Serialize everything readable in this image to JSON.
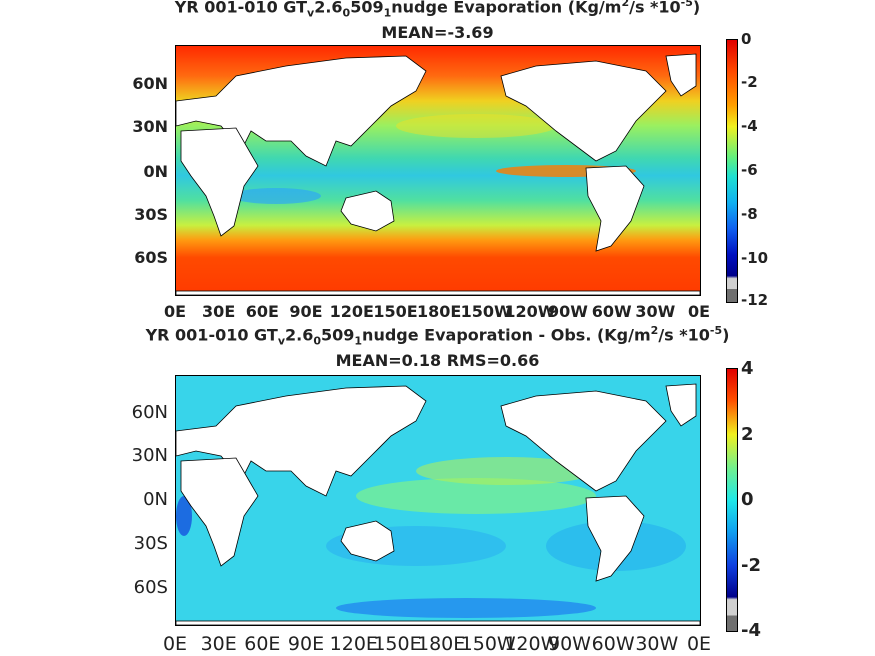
{
  "panel1": {
    "title_parts": [
      "YR 001-010 GT",
      "v",
      "2.6",
      "0",
      "509",
      "1",
      "nudge  Evaporation (Kg/m",
      "2",
      "/s *10",
      "-5",
      ")"
    ],
    "stats": "MEAN=-3.69",
    "lat_labels": [
      "60N",
      "30N",
      "0N",
      "30S",
      "60S"
    ],
    "lon_labels": [
      "0E",
      "30E",
      "60E",
      "90E",
      "120E",
      "150E",
      "180E",
      "150W",
      "120W",
      "90W",
      "60W",
      "30W",
      "0E"
    ],
    "colorbar_labels": [
      "0",
      "-2",
      "-4",
      "-6",
      "-8",
      "-10",
      "-12"
    ]
  },
  "panel2": {
    "title_parts": [
      "YR 001-010 GT",
      "v",
      "2.6",
      "0",
      "509",
      "1",
      "nudge Evaporation - Obs. (Kg/m",
      "2",
      "/s *10",
      "-5",
      ")"
    ],
    "stats": "MEAN=0.18   RMS=0.66",
    "lat_labels": [
      "60N",
      "30N",
      "0N",
      "30S",
      "60S"
    ],
    "lon_labels": [
      "0E",
      "30E",
      "60E",
      "90E",
      "120E",
      "150E",
      "180E",
      "150W",
      "120W",
      "90W",
      "60W",
      "30W",
      "0E"
    ],
    "colorbar_labels": [
      "4",
      "2",
      "0",
      "-2",
      "-4"
    ]
  },
  "colors": {
    "land": "#ffffff",
    "panel1_bg": "#55d9a0",
    "panel2_bg": "#39d0e8"
  }
}
